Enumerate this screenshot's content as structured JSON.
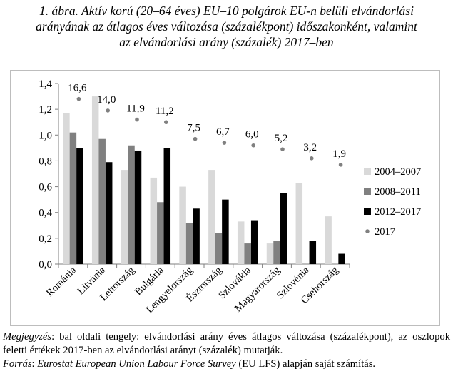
{
  "title_lines": [
    "1. ábra. Aktív korú (20–64 éves) EU–10 polgárok EU-n belüli elvándorlási",
    "arányának az átlagos éves változása (százalékpont) időszakonként, valamint",
    "az elvándorlási arány (százalék) 2017–ben"
  ],
  "notes": {
    "note_label": "Megjegyzés",
    "note_text": ": bal oldali tengely: elvándorlási arány éves átlagos változása (százalékpont), az oszlopok feletti értékek 2017-ben az elvándorlási arányt (százalék) mutatják.",
    "source_label": "Forrás",
    "source_sep": ": ",
    "source_italic": "Eurostat European Union Labour Force Survey",
    "source_text": " (EU LFS) alapján saját számítás."
  },
  "chart_data": {
    "type": "bar",
    "categories": [
      "Románia",
      "Litvánia",
      "Lettország",
      "Bulgária",
      "Lengyelország",
      "Észtország",
      "Szlovákia",
      "Magyarország",
      "Szlovénia",
      "Csehország"
    ],
    "series": [
      {
        "name": "2004–2007",
        "color": "#d9d9d9",
        "values": [
          1.17,
          1.3,
          0.73,
          0.67,
          0.6,
          0.73,
          0.33,
          0.16,
          0.63,
          0.37
        ]
      },
      {
        "name": "2008–2011",
        "color": "#808080",
        "values": [
          1.02,
          0.97,
          0.92,
          0.48,
          0.32,
          0.24,
          0.16,
          0.18,
          null,
          null
        ]
      },
      {
        "name": "2012–2017",
        "color": "#000000",
        "values": [
          0.9,
          0.79,
          0.88,
          0.9,
          0.43,
          0.5,
          0.34,
          0.55,
          0.18,
          0.08
        ]
      }
    ],
    "markers": {
      "name": "2017",
      "color": "#808080",
      "positions": [
        1.28,
        1.19,
        1.12,
        1.1,
        0.97,
        0.94,
        0.92,
        0.89,
        0.82,
        0.77
      ],
      "labels": [
        "16,6",
        "14,0",
        "11,9",
        "11,2",
        "7,5",
        "6,7",
        "6,0",
        "5,2",
        "3,2",
        "1,9"
      ]
    },
    "ylim": [
      0,
      1.4
    ],
    "yticks": [
      "0,0",
      "0,2",
      "0,4",
      "0,6",
      "0,8",
      "1,0",
      "1,2",
      "1,4"
    ],
    "xlabel": "",
    "ylabel": "",
    "grid": false,
    "legend": "right"
  }
}
